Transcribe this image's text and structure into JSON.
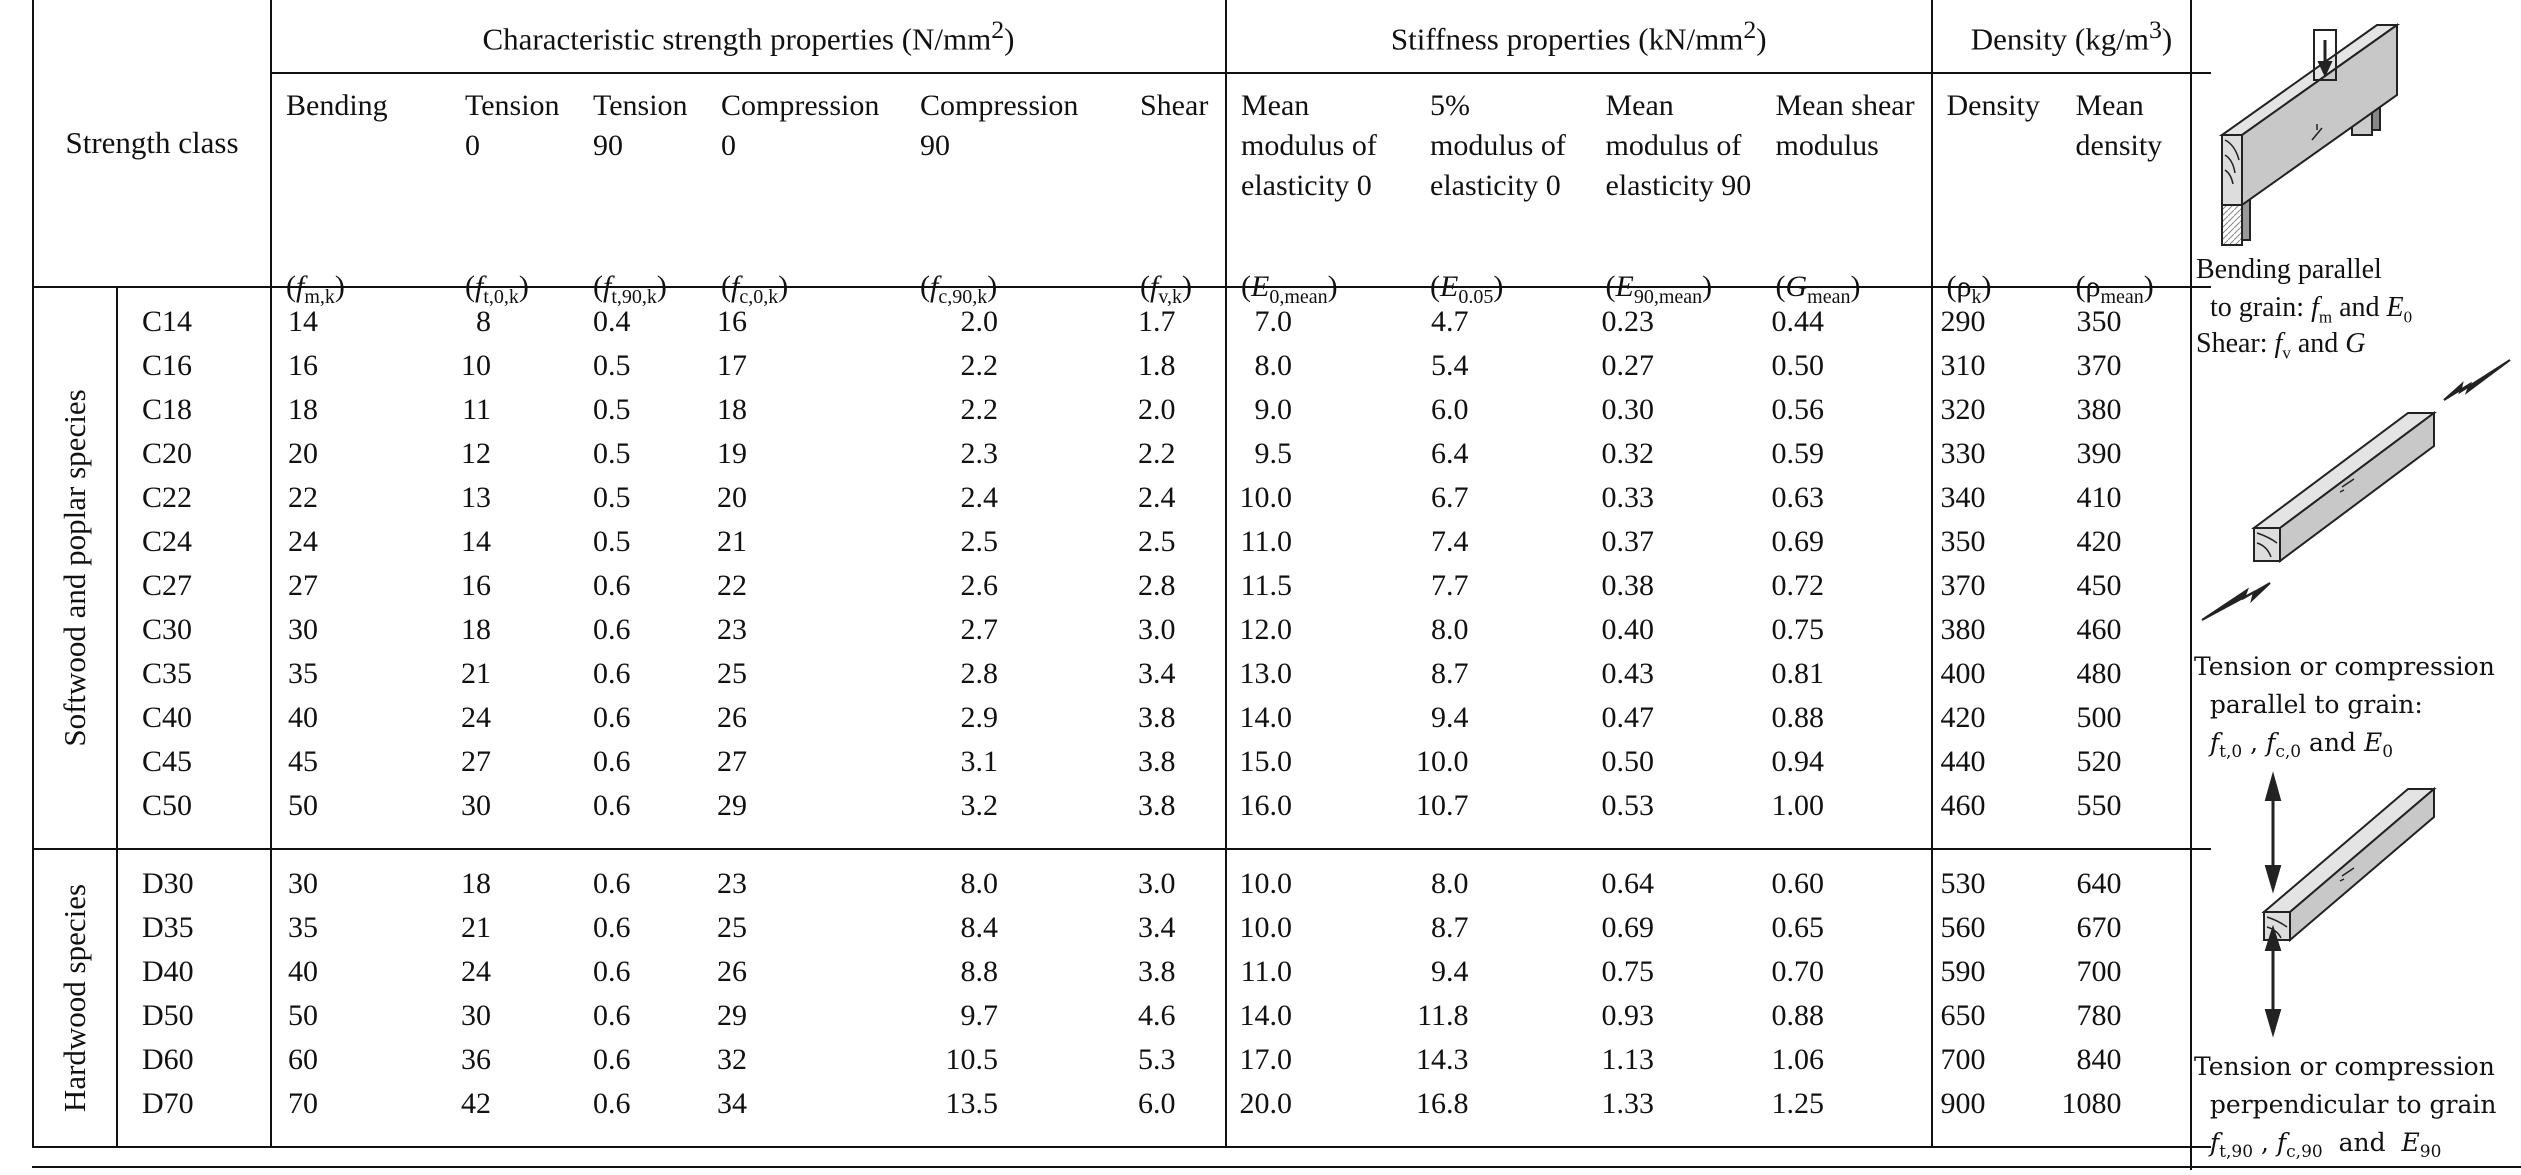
{
  "header": {
    "strength_class": "Strength class",
    "groups": [
      {
        "label": "Characteristic strength properties (N/mm",
        "sup": "2",
        "close": ")"
      },
      {
        "label": "Stiffness properties (kN/mm",
        "sup": "2",
        "close": ")"
      },
      {
        "label": "Density (kg/m",
        "sup": "3",
        "close": ")"
      }
    ],
    "columns": [
      {
        "lines": [
          "Bending"
        ],
        "sym": {
          "base": "f",
          "sub": "m,k",
          "italic": true
        }
      },
      {
        "lines": [
          "Tension",
          "0"
        ],
        "sym": {
          "base": "f",
          "sub": "t,0,k",
          "italic": true
        }
      },
      {
        "lines": [
          "Tension",
          "90"
        ],
        "sym": {
          "base": "f",
          "sub": "t,90,k",
          "italic": true
        }
      },
      {
        "lines": [
          "Compression",
          "0"
        ],
        "sym": {
          "base": "f",
          "sub": "c,0,k",
          "italic": true
        }
      },
      {
        "lines": [
          "Compression",
          "90"
        ],
        "sym": {
          "base": "f",
          "sub": "c,90,k",
          "italic": true
        }
      },
      {
        "lines": [
          "Shear"
        ],
        "sym": {
          "base": "f",
          "sub": "v,k",
          "italic": true
        }
      },
      {
        "lines": [
          "Mean",
          "modulus of",
          "elasticity 0"
        ],
        "sym": {
          "base": "E",
          "sub": "0,mean",
          "italic": true
        }
      },
      {
        "lines": [
          "5%",
          "modulus of",
          "elasticity 0"
        ],
        "sym": {
          "base": "E",
          "sub": "0.05",
          "italic": true
        }
      },
      {
        "lines": [
          "Mean",
          "modulus of",
          "elasticity 90"
        ],
        "sym": {
          "base": "E",
          "sub": "90,mean",
          "italic": true
        }
      },
      {
        "lines": [
          "Mean shear",
          "modulus"
        ],
        "sym": {
          "base": "G",
          "sub": "mean",
          "italic": true
        }
      },
      {
        "lines": [
          "Density"
        ],
        "sym": {
          "base": "ρ",
          "sub": "k",
          "italic": false
        }
      },
      {
        "lines": [
          "Mean",
          "density"
        ],
        "sym": {
          "base": "ρ",
          "sub": "mean",
          "italic": false
        }
      }
    ]
  },
  "groups": [
    {
      "label": "Softwood and poplar species",
      "rows": [
        [
          "C14",
          "14",
          "8",
          "0.4",
          "16",
          "2.0",
          "1.7",
          "7.0",
          "4.7",
          "0.23",
          "0.44",
          "290",
          "350"
        ],
        [
          "C16",
          "16",
          "10",
          "0.5",
          "17",
          "2.2",
          "1.8",
          "8.0",
          "5.4",
          "0.27",
          "0.50",
          "310",
          "370"
        ],
        [
          "C18",
          "18",
          "11",
          "0.5",
          "18",
          "2.2",
          "2.0",
          "9.0",
          "6.0",
          "0.30",
          "0.56",
          "320",
          "380"
        ],
        [
          "C20",
          "20",
          "12",
          "0.5",
          "19",
          "2.3",
          "2.2",
          "9.5",
          "6.4",
          "0.32",
          "0.59",
          "330",
          "390"
        ],
        [
          "C22",
          "22",
          "13",
          "0.5",
          "20",
          "2.4",
          "2.4",
          "10.0",
          "6.7",
          "0.33",
          "0.63",
          "340",
          "410"
        ],
        [
          "C24",
          "24",
          "14",
          "0.5",
          "21",
          "2.5",
          "2.5",
          "11.0",
          "7.4",
          "0.37",
          "0.69",
          "350",
          "420"
        ],
        [
          "C27",
          "27",
          "16",
          "0.6",
          "22",
          "2.6",
          "2.8",
          "11.5",
          "7.7",
          "0.38",
          "0.72",
          "370",
          "450"
        ],
        [
          "C30",
          "30",
          "18",
          "0.6",
          "23",
          "2.7",
          "3.0",
          "12.0",
          "8.0",
          "0.40",
          "0.75",
          "380",
          "460"
        ],
        [
          "C35",
          "35",
          "21",
          "0.6",
          "25",
          "2.8",
          "3.4",
          "13.0",
          "8.7",
          "0.43",
          "0.81",
          "400",
          "480"
        ],
        [
          "C40",
          "40",
          "24",
          "0.6",
          "26",
          "2.9",
          "3.8",
          "14.0",
          "9.4",
          "0.47",
          "0.88",
          "420",
          "500"
        ],
        [
          "C45",
          "45",
          "27",
          "0.6",
          "27",
          "3.1",
          "3.8",
          "15.0",
          "10.0",
          "0.50",
          "0.94",
          "440",
          "520"
        ],
        [
          "C50",
          "50",
          "30",
          "0.6",
          "29",
          "3.2",
          "3.8",
          "16.0",
          "10.7",
          "0.53",
          "1.00",
          "460",
          "550"
        ]
      ]
    },
    {
      "label": "Hardwood species",
      "rows": [
        [
          "D30",
          "30",
          "18",
          "0.6",
          "23",
          "8.0",
          "3.0",
          "10.0",
          "8.0",
          "0.64",
          "0.60",
          "530",
          "640"
        ],
        [
          "D35",
          "35",
          "21",
          "0.6",
          "25",
          "8.4",
          "3.4",
          "10.0",
          "8.7",
          "0.69",
          "0.65",
          "560",
          "670"
        ],
        [
          "D40",
          "40",
          "24",
          "0.6",
          "26",
          "8.8",
          "3.8",
          "11.0",
          "9.4",
          "0.75",
          "0.70",
          "590",
          "700"
        ],
        [
          "D50",
          "50",
          "30",
          "0.6",
          "29",
          "9.7",
          "4.6",
          "14.0",
          "11.8",
          "0.93",
          "0.88",
          "650",
          "780"
        ],
        [
          "D60",
          "60",
          "36",
          "0.6",
          "32",
          "10.5",
          "5.3",
          "17.0",
          "14.3",
          "1.13",
          "1.06",
          "700",
          "840"
        ],
        [
          "D70",
          "70",
          "42",
          "0.6",
          "34",
          "13.5",
          "6.0",
          "20.0",
          "16.8",
          "1.33",
          "1.25",
          "900",
          "1080"
        ]
      ]
    }
  ],
  "figures": [
    {
      "name": "bending-figure",
      "caption": [
        [
          {
            "t": "Bending parallel"
          }
        ],
        [
          {
            "t": "  to grain: "
          },
          {
            "t": "f",
            "i": true
          },
          {
            "s": "m"
          },
          {
            "t": " and "
          },
          {
            "t": "E",
            "i": true
          },
          {
            "s": "0"
          }
        ],
        [
          {
            "t": "Shear: "
          },
          {
            "t": "f",
            "i": true
          },
          {
            "s": "v"
          },
          {
            "t": " and "
          },
          {
            "t": "G",
            "i": true
          }
        ]
      ]
    },
    {
      "name": "parallel-figure",
      "caption": [
        [
          {
            "t": "Tension or compression"
          }
        ],
        [
          {
            "t": "  parallel to grain:"
          }
        ],
        [
          {
            "t": "  "
          },
          {
            "t": "f",
            "i": true
          },
          {
            "s": "t,0"
          },
          {
            "t": " , "
          },
          {
            "t": "f",
            "i": true
          },
          {
            "s": "c,0"
          },
          {
            "t": " and "
          },
          {
            "t": "E",
            "i": true
          },
          {
            "s": "0"
          }
        ]
      ]
    },
    {
      "name": "perpendicular-figure",
      "caption": [
        [
          {
            "t": "Tension or compression"
          }
        ],
        [
          {
            "t": "  perpendicular to grain"
          }
        ],
        [
          {
            "t": "  "
          },
          {
            "t": "f",
            "i": true
          },
          {
            "s": "t,90"
          },
          {
            "t": " , "
          },
          {
            "t": "f",
            "i": true
          },
          {
            "s": "c,90"
          },
          {
            "t": "  and  "
          },
          {
            "t": "E",
            "i": true
          },
          {
            "s": "90"
          }
        ]
      ]
    }
  ]
}
